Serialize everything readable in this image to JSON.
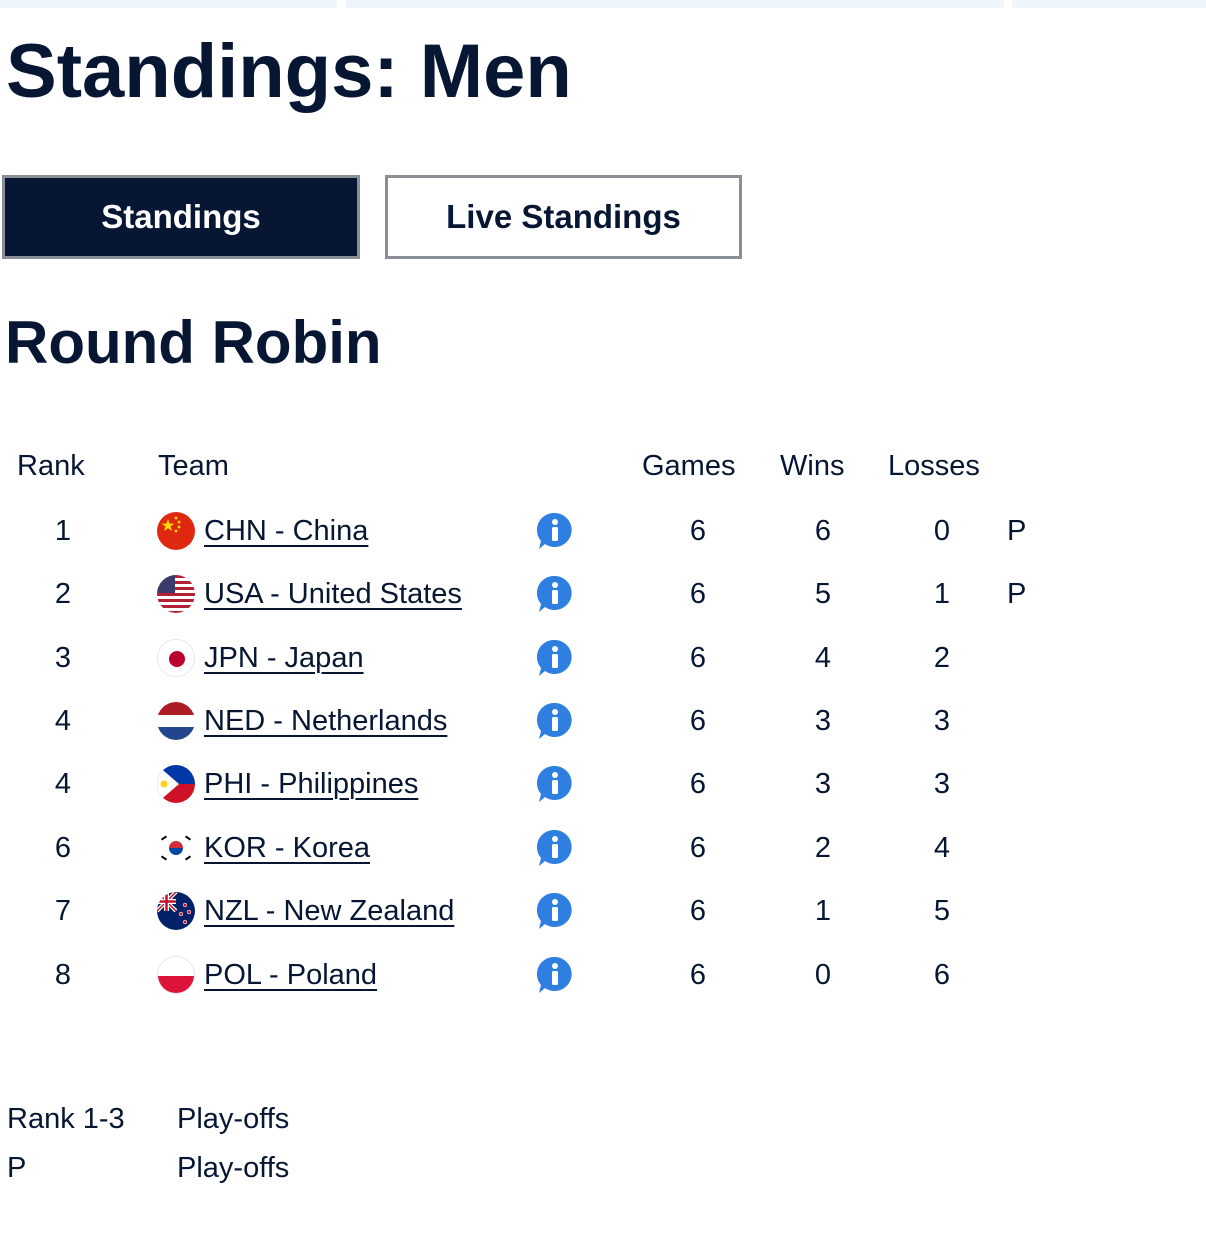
{
  "page": {
    "title": "Standings: Men"
  },
  "tabs": [
    {
      "label": "Standings",
      "active": true
    },
    {
      "label": "Live Standings",
      "active": false
    }
  ],
  "section": {
    "title": "Round Robin"
  },
  "table": {
    "headers": {
      "rank": "Rank",
      "team": "Team",
      "games": "Games",
      "wins": "Wins",
      "losses": "Losses"
    },
    "rows": [
      {
        "rank": "1",
        "team": "CHN - China",
        "flag": "china-flag-icon",
        "games": "6",
        "wins": "6",
        "losses": "0",
        "qual": "P"
      },
      {
        "rank": "2",
        "team": "USA - United States",
        "flag": "usa-flag-icon",
        "games": "6",
        "wins": "5",
        "losses": "1",
        "qual": "P"
      },
      {
        "rank": "3",
        "team": "JPN - Japan",
        "flag": "japan-flag-icon",
        "games": "6",
        "wins": "4",
        "losses": "2",
        "qual": ""
      },
      {
        "rank": "4",
        "team": "NED - Netherlands",
        "flag": "netherlands-flag-icon",
        "games": "6",
        "wins": "3",
        "losses": "3",
        "qual": ""
      },
      {
        "rank": "4",
        "team": "PHI - Philippines",
        "flag": "philippines-flag-icon",
        "games": "6",
        "wins": "3",
        "losses": "3",
        "qual": ""
      },
      {
        "rank": "6",
        "team": "KOR - Korea",
        "flag": "korea-flag-icon",
        "games": "6",
        "wins": "2",
        "losses": "4",
        "qual": ""
      },
      {
        "rank": "7",
        "team": "NZL - New Zealand",
        "flag": "new-zealand-flag-icon",
        "games": "6",
        "wins": "1",
        "losses": "5",
        "qual": ""
      },
      {
        "rank": "8",
        "team": "POL - Poland",
        "flag": "poland-flag-icon",
        "games": "6",
        "wins": "0",
        "losses": "6",
        "qual": ""
      }
    ],
    "row_icon": "info-icon"
  },
  "legend": [
    {
      "key": "Rank 1-3",
      "value": "Play-offs"
    },
    {
      "key": "P",
      "value": "Play-offs"
    }
  ],
  "colors": {
    "navy": "#061633",
    "border_gray": "#8a8f96",
    "info_blue": "#2f7fe0",
    "topbar": "#eef6fb"
  }
}
